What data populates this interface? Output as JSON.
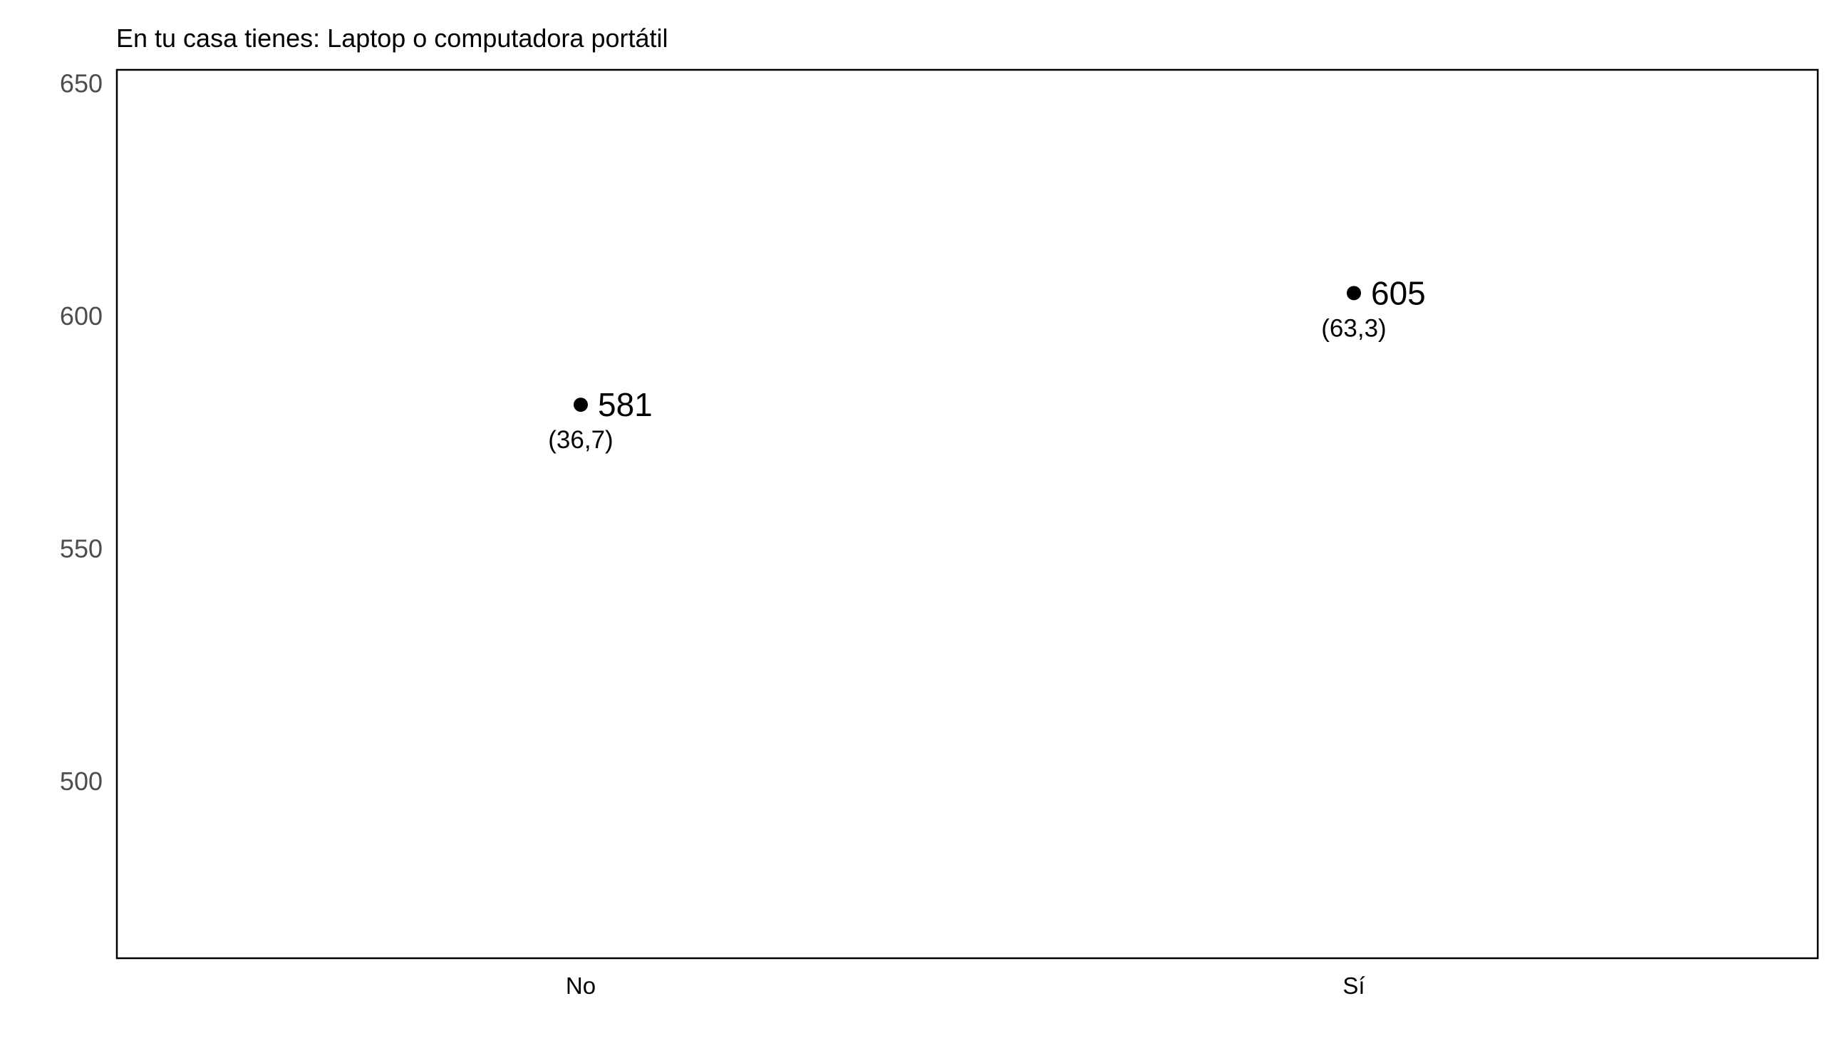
{
  "chart_data": {
    "type": "scatter",
    "title": "En tu casa tienes: Laptop o computadora portátil",
    "xlabel": "",
    "ylabel": "",
    "categories": [
      "No",
      "Sí"
    ],
    "values": [
      581,
      605
    ],
    "value_labels": [
      "581",
      "605"
    ],
    "percent_labels": [
      "(36,7)",
      "(63,3)"
    ],
    "ylim": [
      462,
      653
    ],
    "y_ticks": [
      500,
      550,
      600,
      650
    ],
    "y_tick_labels": [
      "500",
      "550",
      "600",
      "650"
    ],
    "grid": false,
    "legend": "none",
    "point_color": "#000000"
  }
}
